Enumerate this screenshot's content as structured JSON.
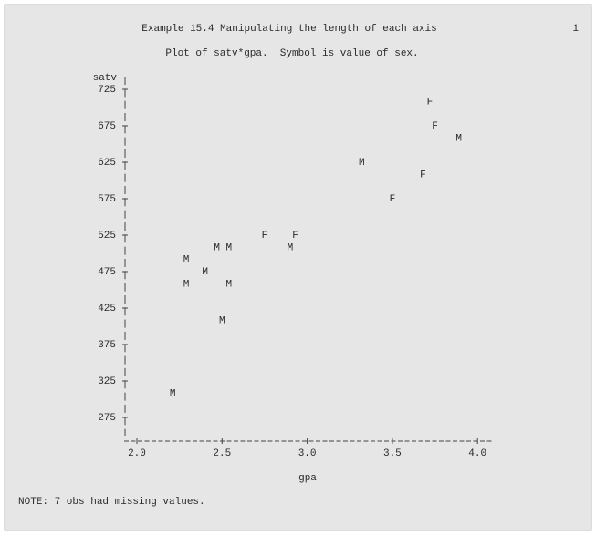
{
  "chart_data": {
    "type": "scatter",
    "title": "Example 15.4 Manipulating the length of each axis",
    "page_number": "1",
    "subtitle": "Plot of satv*gpa.  Symbol is value of sex.",
    "x_label": "gpa",
    "y_label": "satv",
    "note": "NOTE: 7 obs had missing values.",
    "x": [
      3.72,
      3.75,
      3.89,
      3.32,
      3.68,
      3.5,
      2.75,
      2.93,
      2.47,
      2.54,
      2.9,
      2.29,
      2.4,
      2.29,
      2.54,
      2.5,
      2.21
    ],
    "y": [
      708,
      675,
      658,
      625,
      608,
      575,
      525,
      525,
      508,
      508,
      508,
      492,
      475,
      458,
      458,
      408,
      308
    ],
    "symbols": [
      "F",
      "F",
      "M",
      "M",
      "F",
      "F",
      "F",
      "F",
      "M",
      "M",
      "M",
      "M",
      "M",
      "M",
      "M",
      "M",
      "M"
    ],
    "xlim": [
      1.925,
      4.09
    ],
    "ylim": [
      242.5,
      742.5
    ],
    "xticks": [
      {
        "value": 2,
        "label": "2.0"
      },
      {
        "value": 2.5,
        "label": "2.5"
      },
      {
        "value": 3,
        "label": "3.0"
      },
      {
        "value": 3.5,
        "label": "3.5"
      },
      {
        "value": 4,
        "label": "4.0"
      }
    ],
    "yticks": [
      725,
      675,
      625,
      575,
      525,
      475,
      425,
      375,
      325,
      275
    ]
  }
}
